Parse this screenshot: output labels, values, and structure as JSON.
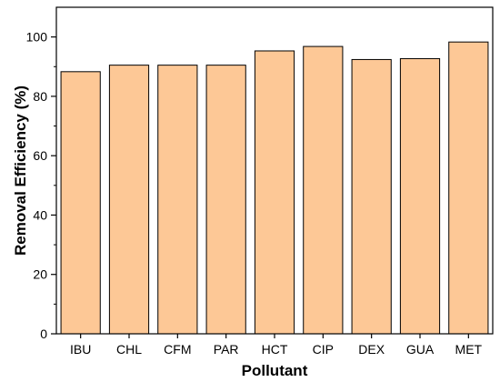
{
  "chart_data": {
    "type": "bar",
    "title": "",
    "xlabel": "Pollutant",
    "ylabel": "Removal Efficiency (%)",
    "categories": [
      "IBU",
      "CHL",
      "CFM",
      "PAR",
      "HCT",
      "CIP",
      "DEX",
      "GUA",
      "MET"
    ],
    "values": [
      88.3,
      90.5,
      90.5,
      90.5,
      95.3,
      96.8,
      92.4,
      92.7,
      98.3
    ],
    "ylim": [
      0,
      110
    ],
    "yticks": [
      0,
      20,
      40,
      60,
      80,
      100
    ],
    "grid": false,
    "legend": "none",
    "colors": {
      "bar_fill": "#FDC896",
      "bar_stroke": "#000000",
      "axis": "#000000"
    }
  }
}
